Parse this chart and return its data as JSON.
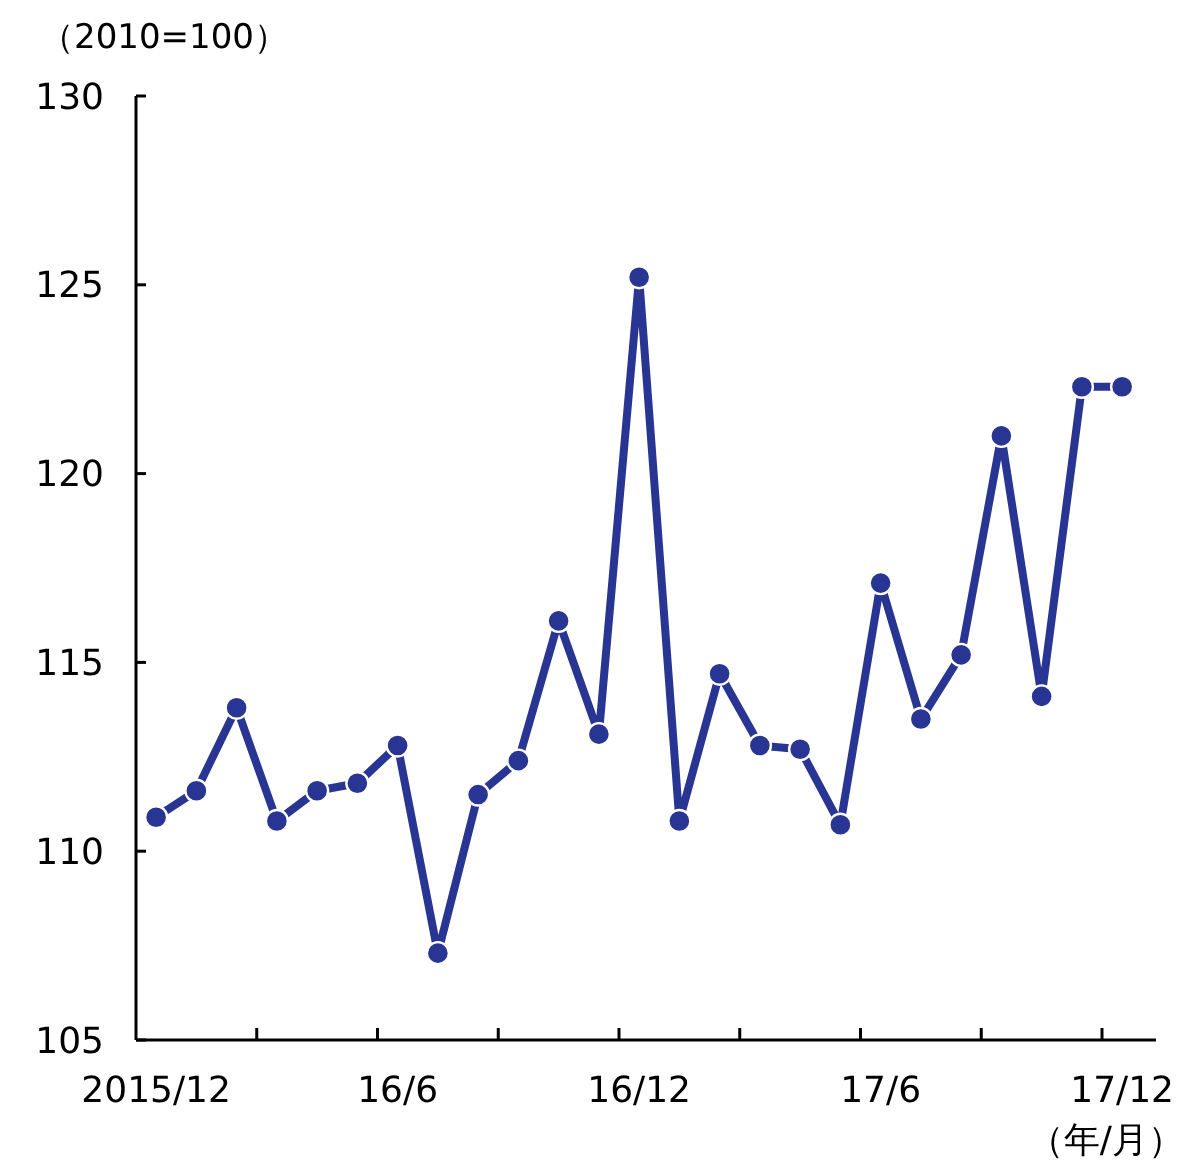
{
  "chart_data": {
    "type": "line",
    "ylabel": "（2010=100）",
    "xlabel": "（年/月）",
    "categories": [
      "2015/12",
      null,
      null,
      null,
      null,
      null,
      "16/6",
      null,
      null,
      null,
      null,
      null,
      "16/12",
      null,
      null,
      null,
      null,
      null,
      "17/6",
      null,
      null,
      null,
      null,
      null,
      "17/12"
    ],
    "series": [
      {
        "color": "#283593",
        "values": [
          110.9,
          111.6,
          113.8,
          110.8,
          111.6,
          111.8,
          112.8,
          107.3,
          111.5,
          112.4,
          116.1,
          113.1,
          125.2,
          110.8,
          114.7,
          112.8,
          112.7,
          110.7,
          117.1,
          113.5,
          115.2,
          121.0,
          114.1,
          122.3,
          122.3
        ]
      }
    ],
    "ylim": [
      105,
      130
    ],
    "yticks": [
      105,
      110,
      115,
      120,
      125,
      130
    ],
    "grid": false,
    "marker": "circle",
    "line_style": "solid"
  }
}
